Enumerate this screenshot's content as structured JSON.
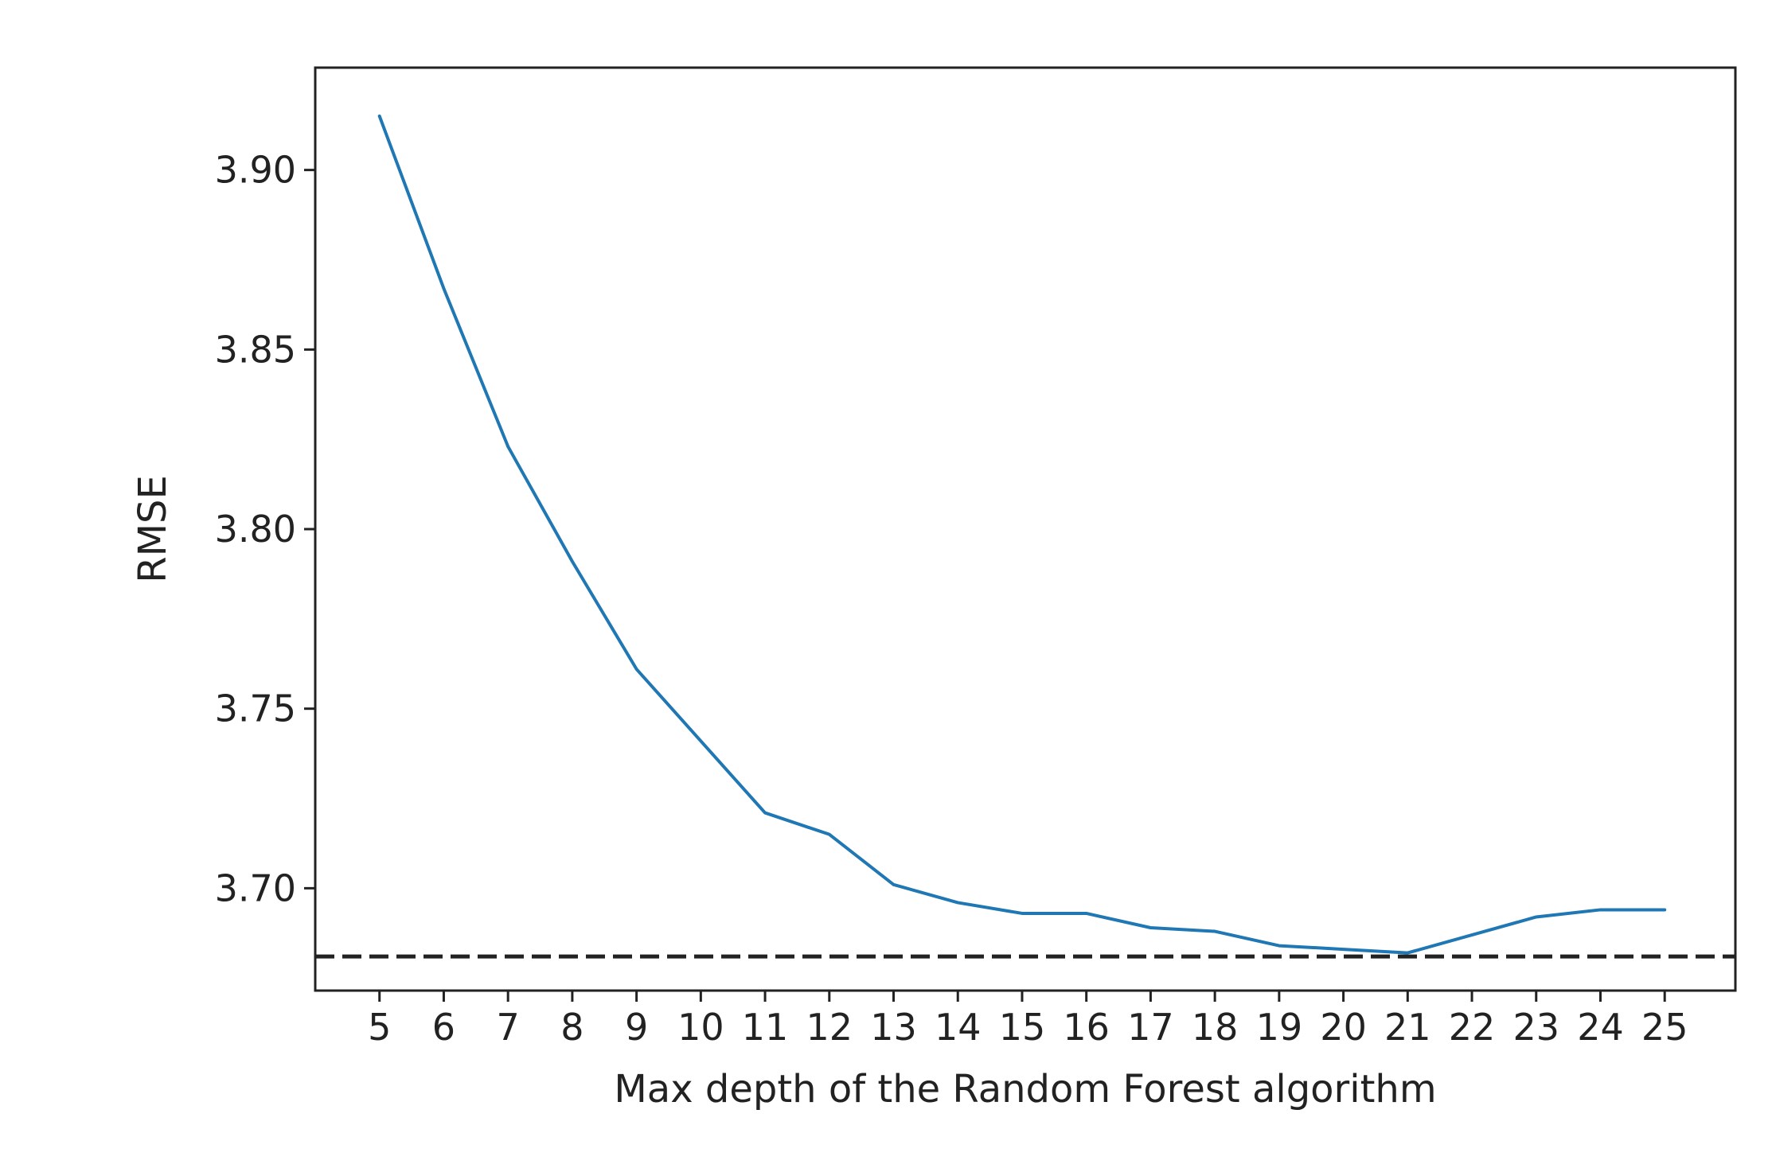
{
  "chart_data": {
    "type": "line",
    "title": "",
    "xlabel": "Max depth of the Random Forest algorithm",
    "ylabel": "RMSE",
    "x": [
      5,
      6,
      7,
      8,
      9,
      10,
      11,
      12,
      13,
      14,
      15,
      16,
      17,
      18,
      19,
      20,
      21,
      22,
      23,
      24,
      25
    ],
    "series": [
      {
        "color": "#1f77b4",
        "values": [
          3.915,
          3.867,
          3.823,
          3.791,
          3.761,
          3.741,
          3.721,
          3.715,
          3.701,
          3.696,
          3.693,
          3.693,
          3.689,
          3.688,
          3.684,
          3.683,
          3.682,
          3.687,
          3.692,
          3.694,
          3.694
        ]
      }
    ],
    "reference_line": {
      "y": 3.681,
      "style": "dashed",
      "color": "#222222"
    },
    "xlim": [
      4,
      26.1
    ],
    "ylim": [
      3.6715,
      3.9285
    ],
    "xticks": [
      5,
      6,
      7,
      8,
      9,
      10,
      11,
      12,
      13,
      14,
      15,
      16,
      17,
      18,
      19,
      20,
      21,
      22,
      23,
      24,
      25
    ],
    "yticks": [
      3.7,
      3.75,
      3.8,
      3.85,
      3.9
    ],
    "ytick_labels": [
      "3.70",
      "3.75",
      "3.80",
      "3.85",
      "3.90"
    ],
    "grid": false,
    "legend": "none"
  }
}
